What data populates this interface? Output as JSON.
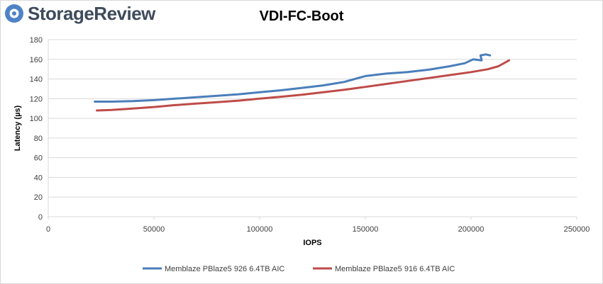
{
  "brand": {
    "name": "StorageReview"
  },
  "colors": {
    "series1": "#4a7ebb",
    "series2": "#be4b48",
    "grid": "#d9d9d9",
    "brand_icon": "#4f83c6"
  },
  "chart_data": {
    "type": "line",
    "title": "VDI-FC-Boot",
    "xlabel": "IOPS",
    "ylabel": "Latency (µs)",
    "xlim": [
      0,
      250000
    ],
    "ylim": [
      0,
      180
    ],
    "x_ticks": [
      "0",
      "50000",
      "100000",
      "150000",
      "200000",
      "250000"
    ],
    "y_ticks": [
      "0",
      "20",
      "40",
      "60",
      "80",
      "100",
      "120",
      "140",
      "160",
      "180"
    ],
    "grid": "horizontal",
    "legend_position": "bottom",
    "series": [
      {
        "name": "Memblaze PBlaze5 926 6.4TB AIC",
        "color": "#4a7ebb",
        "points": [
          [
            22000,
            117
          ],
          [
            30000,
            117
          ],
          [
            40000,
            117.5
          ],
          [
            50000,
            118.5
          ],
          [
            60000,
            120
          ],
          [
            70000,
            121.5
          ],
          [
            80000,
            123
          ],
          [
            90000,
            124.5
          ],
          [
            100000,
            126.5
          ],
          [
            110000,
            128.5
          ],
          [
            120000,
            131
          ],
          [
            130000,
            133.5
          ],
          [
            140000,
            137
          ],
          [
            150000,
            143
          ],
          [
            160000,
            145.5
          ],
          [
            170000,
            147
          ],
          [
            180000,
            149.5
          ],
          [
            190000,
            153
          ],
          [
            197000,
            156
          ],
          [
            201000,
            160
          ],
          [
            205000,
            159
          ],
          [
            204500,
            164
          ],
          [
            207000,
            165
          ],
          [
            209000,
            164
          ]
        ]
      },
      {
        "name": "Memblaze PBlaze5 916 6.4TB AIC",
        "color": "#be4b48",
        "points": [
          [
            23000,
            108
          ],
          [
            30000,
            108.5
          ],
          [
            40000,
            110
          ],
          [
            50000,
            111.5
          ],
          [
            60000,
            113.5
          ],
          [
            70000,
            115
          ],
          [
            80000,
            116.5
          ],
          [
            90000,
            118
          ],
          [
            100000,
            120
          ],
          [
            110000,
            122
          ],
          [
            120000,
            124
          ],
          [
            130000,
            126.5
          ],
          [
            140000,
            129
          ],
          [
            150000,
            132
          ],
          [
            160000,
            135
          ],
          [
            170000,
            138
          ],
          [
            180000,
            141
          ],
          [
            190000,
            144
          ],
          [
            200000,
            147
          ],
          [
            208000,
            150
          ],
          [
            213000,
            153
          ],
          [
            218000,
            159
          ]
        ]
      }
    ]
  }
}
